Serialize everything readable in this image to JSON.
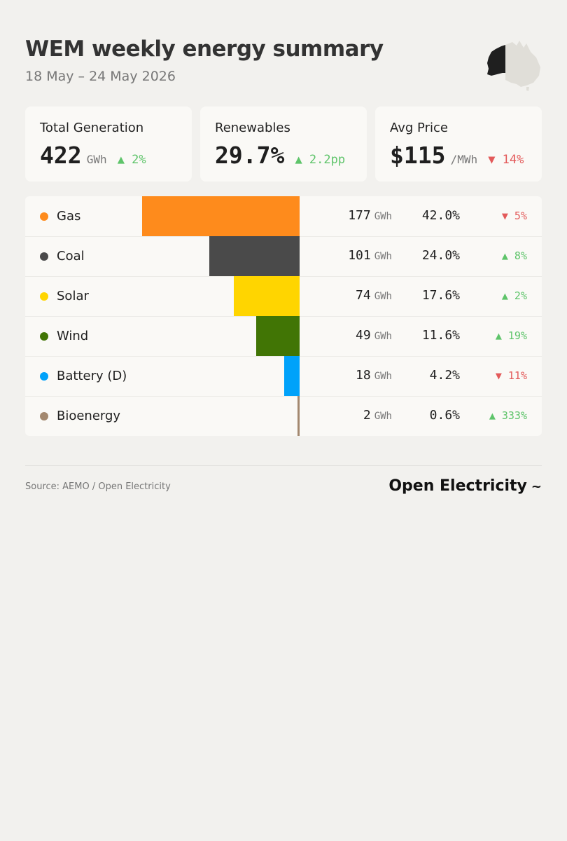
{
  "header": {
    "title": "WEM weekly energy summary",
    "date_range": "18 May – 24 May 2026"
  },
  "cards": [
    {
      "label": "Total Generation",
      "value": "422",
      "unit": "GWh",
      "delta": "▲ 2%",
      "direction": "up"
    },
    {
      "label": "Renewables",
      "value": "29.7%",
      "unit": "",
      "delta": "▲ 2.2pp",
      "direction": "up"
    },
    {
      "label": "Avg Price",
      "value": "$115",
      "unit": "/MWh",
      "delta": "▼ 14%",
      "direction": "down"
    }
  ],
  "table": {
    "rows": [
      {
        "label": "Gas",
        "color": "#fe8b1c",
        "energy": "177",
        "unit": "GWh",
        "share": "42.0%",
        "share_value": 42.0,
        "energy_value": 177,
        "change": "▼ 5%",
        "direction": "down"
      },
      {
        "label": "Coal",
        "color": "#4a4a4a",
        "energy": "101",
        "unit": "GWh",
        "share": "24.0%",
        "share_value": 24.0,
        "energy_value": 101,
        "change": "▲ 8%",
        "direction": "up"
      },
      {
        "label": "Solar",
        "color": "#ffd500",
        "energy": "74",
        "unit": "GWh",
        "share": "17.6%",
        "share_value": 17.6,
        "energy_value": 74,
        "change": "▲ 2%",
        "direction": "up"
      },
      {
        "label": "Wind",
        "color": "#417505",
        "energy": "49",
        "unit": "GWh",
        "share": "11.6%",
        "share_value": 11.6,
        "energy_value": 49,
        "change": "▲ 19%",
        "direction": "up"
      },
      {
        "label": "Battery (D)",
        "color": "#00a2fa",
        "energy": "18",
        "unit": "GWh",
        "share": "4.2%",
        "share_value": 4.2,
        "energy_value": 18,
        "change": "▼ 11%",
        "direction": "down"
      },
      {
        "label": "Bioenergy",
        "color": "#a3886f",
        "energy": "2",
        "unit": "GWh",
        "share": "0.6%",
        "share_value": 0.6,
        "energy_value": 2,
        "change": "▲ 333%",
        "direction": "up"
      }
    ]
  },
  "footer": {
    "source": "Source: AEMO / Open Electricity",
    "brand": "Open Electricity",
    "brand_mark": "~"
  },
  "colors": {
    "up": "#5ec46a",
    "down": "#e35a5a",
    "background": "#f2f1ee",
    "card": "#faf9f6"
  }
}
